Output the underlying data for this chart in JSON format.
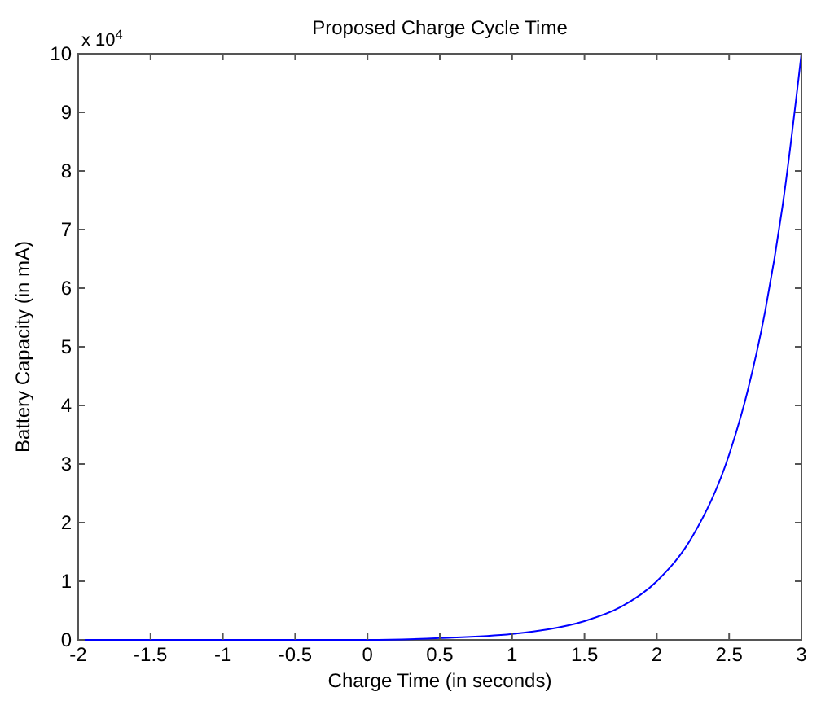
{
  "chart_data": {
    "type": "line",
    "title": "Proposed Charge Cycle Time",
    "xlabel": "Charge Time (in seconds)",
    "ylabel": "Battery Capacity (in mA)",
    "annotations": [
      "x 10$^{4}$"
    ],
    "x": [
      -2,
      -1,
      0,
      0.5,
      1,
      1.25,
      1.5,
      1.75,
      2,
      2.25,
      2.5,
      2.625,
      2.75,
      2.875,
      3
    ],
    "series": [
      {
        "color": "#0000ff",
        "values": [
          0,
          0,
          0,
          0.03,
          0.1,
          0.18,
          0.32,
          0.56,
          1,
          1.78,
          3.16,
          4.22,
          5.62,
          7.5,
          10
        ]
      }
    ],
    "xlim": [
      -2,
      3
    ],
    "xticks": [
      -2,
      -1.5,
      -1,
      -0.5,
      0,
      0.5,
      1,
      1.5,
      2,
      2.5,
      3
    ],
    "ylim": [
      0,
      10
    ],
    "yticks": [
      0,
      1,
      2,
      3,
      4,
      5,
      6,
      7,
      8,
      9,
      10
    ],
    "grid": false,
    "marker": "none",
    "line_style": "solid"
  }
}
